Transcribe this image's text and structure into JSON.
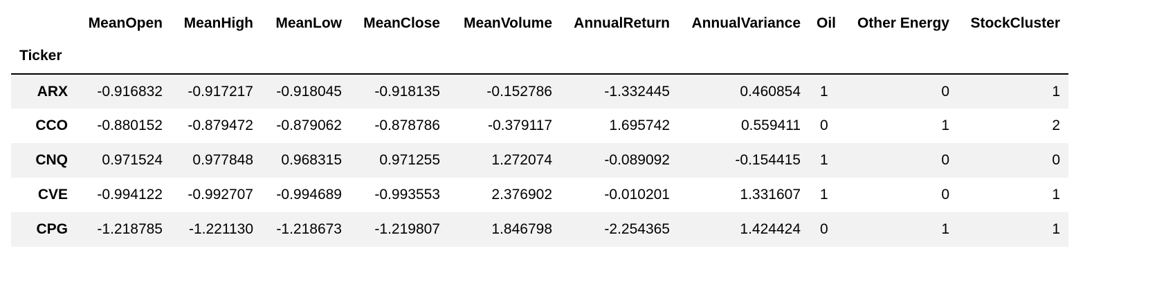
{
  "table": {
    "columns": [
      "MeanOpen",
      "MeanHigh",
      "MeanLow",
      "MeanClose",
      "MeanVolume",
      "AnnualReturn",
      "AnnualVariance",
      "Oil",
      "Other Energy",
      "StockCluster"
    ],
    "index_name": "Ticker",
    "rows": [
      {
        "ticker": "ARX",
        "values": [
          "-0.916832",
          "-0.917217",
          "-0.918045",
          "-0.918135",
          "-0.152786",
          "-1.332445",
          "0.460854",
          "1",
          "0",
          "1"
        ]
      },
      {
        "ticker": "CCO",
        "values": [
          "-0.880152",
          "-0.879472",
          "-0.879062",
          "-0.878786",
          "-0.379117",
          "1.695742",
          "0.559411",
          "0",
          "1",
          "2"
        ]
      },
      {
        "ticker": "CNQ",
        "values": [
          "0.971524",
          "0.977848",
          "0.968315",
          "0.971255",
          "1.272074",
          "-0.089092",
          "-0.154415",
          "1",
          "0",
          "0"
        ]
      },
      {
        "ticker": "CVE",
        "values": [
          "-0.994122",
          "-0.992707",
          "-0.994689",
          "-0.993553",
          "2.376902",
          "-0.010201",
          "1.331607",
          "1",
          "0",
          "1"
        ]
      },
      {
        "ticker": "CPG",
        "values": [
          "-1.218785",
          "-1.221130",
          "-1.218673",
          "-1.219807",
          "1.846798",
          "-2.254365",
          "1.424424",
          "0",
          "1",
          "1"
        ]
      }
    ]
  },
  "colors": {
    "stripe": "#f2f2f2",
    "rule": "#000000",
    "text": "#000000"
  }
}
